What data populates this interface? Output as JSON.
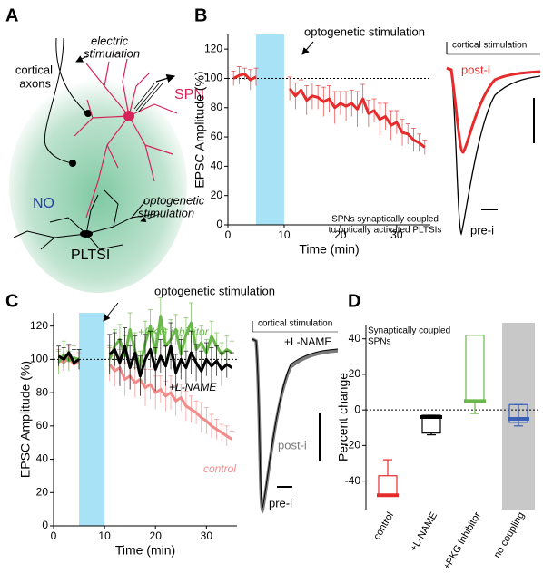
{
  "panel_labels": [
    "A",
    "B",
    "C",
    "D"
  ],
  "diagram": {
    "electric_stimulation": [
      "electric",
      "stimulation"
    ],
    "cortical_axons": [
      "cortical",
      "axons"
    ],
    "spn": "SPN",
    "no": "NO",
    "optogenetic_stimulation": [
      "optogenetic",
      "stimulation"
    ],
    "pltsi": "PLTSI"
  },
  "traces": [
    {
      "stimulus": "cortical stimulation",
      "post": "post-i",
      "pre": "pre-i"
    },
    {
      "stimulus": "cortical stimulation",
      "condition": "+L-NAME",
      "post": "post-i",
      "pre": "pre-i"
    }
  ],
  "chart_data": [
    {
      "type": "line",
      "xlabel": "Time (min)",
      "ylabel": "EPSC Amplitude (%)",
      "xlim": [
        0,
        36
      ],
      "xticks": [
        0,
        10,
        20,
        30
      ],
      "ylim": [
        0,
        130
      ],
      "yticks": [
        0,
        20,
        40,
        60,
        80,
        100,
        120
      ],
      "reference_line": 100,
      "shaded_span": [
        5,
        10
      ],
      "shaded_color": "#a8e2f6",
      "annotation": "optogenetic stimulation",
      "note": [
        "SPNs synaptically coupled",
        "to optically activated PLTSIs"
      ],
      "x": [
        1,
        2,
        3,
        4,
        5,
        6,
        7,
        8,
        9,
        10,
        11,
        12,
        13,
        14,
        15,
        16,
        17,
        18,
        19,
        20,
        21,
        22,
        23,
        24,
        25,
        26,
        27,
        28,
        29,
        30,
        31,
        32,
        33,
        34,
        35
      ],
      "series": [
        {
          "color": "#e52b2b",
          "values": [
            100,
            102,
            103,
            99,
            101,
            null,
            null,
            null,
            null,
            null,
            93,
            88,
            92,
            85,
            88,
            87,
            84,
            86,
            80,
            83,
            81,
            83,
            79,
            86,
            76,
            78,
            72,
            74,
            68,
            70,
            63,
            62,
            58,
            56,
            53
          ],
          "errors": [
            5,
            6,
            4,
            7,
            6,
            null,
            null,
            null,
            null,
            null,
            8,
            9,
            7,
            10,
            9,
            8,
            10,
            9,
            11,
            8,
            10,
            9,
            12,
            10,
            9,
            8,
            11,
            9,
            10,
            8,
            9,
            7,
            8,
            6,
            5
          ]
        }
      ]
    },
    {
      "type": "line",
      "xlabel": "Time (min)",
      "ylabel": "EPSC Amplitude (%)",
      "xlim": [
        0,
        36
      ],
      "xticks": [
        0,
        10,
        20,
        30
      ],
      "ylim": [
        0,
        128
      ],
      "yticks": [
        0,
        20,
        40,
        60,
        80,
        100,
        120
      ],
      "reference_line": 100,
      "shaded_span": [
        5,
        10
      ],
      "shaded_color": "#a8e2f6",
      "annotation": "optogenetic stimulation",
      "x": [
        1,
        2,
        3,
        4,
        5,
        6,
        7,
        8,
        9,
        10,
        11,
        12,
        13,
        14,
        15,
        16,
        17,
        18,
        19,
        20,
        21,
        22,
        23,
        24,
        25,
        26,
        27,
        28,
        29,
        30,
        31,
        32,
        33,
        34,
        35
      ],
      "series": [
        {
          "name": "control",
          "color": "#f28a8a",
          "values": [
            100,
            98,
            101,
            97,
            99,
            null,
            null,
            null,
            null,
            null,
            97,
            93,
            95,
            88,
            90,
            86,
            88,
            83,
            85,
            80,
            82,
            78,
            80,
            75,
            77,
            72,
            70,
            68,
            65,
            63,
            60,
            58,
            56,
            54,
            52
          ],
          "errors": [
            6,
            5,
            7,
            6,
            5,
            null,
            null,
            null,
            null,
            null,
            10,
            9,
            11,
            10,
            8,
            9,
            10,
            11,
            9,
            10,
            8,
            9,
            10,
            9,
            8,
            9,
            8,
            7,
            9,
            8,
            7,
            6,
            5,
            6,
            5
          ]
        },
        {
          "name": "+PKG inhibitor",
          "color": "#6ab84a",
          "values": [
            98,
            103,
            99,
            101,
            100,
            null,
            null,
            null,
            null,
            null,
            100,
            108,
            112,
            102,
            118,
            105,
            96,
            110,
            120,
            104,
            126,
            108,
            112,
            118,
            103,
            115,
            122,
            106,
            110,
            104,
            114,
            108,
            103,
            106,
            104
          ],
          "errors": [
            7,
            8,
            6,
            7,
            6,
            null,
            null,
            null,
            null,
            null,
            8,
            10,
            9,
            12,
            10,
            11,
            9,
            13,
            10,
            12,
            11,
            10,
            12,
            9,
            11,
            10,
            12,
            9,
            10,
            8,
            9,
            8,
            7,
            8,
            7
          ]
        },
        {
          "name": "+L-NAME",
          "color": "#000000",
          "values": [
            102,
            100,
            104,
            98,
            100,
            null,
            null,
            null,
            null,
            null,
            103,
            106,
            98,
            108,
            95,
            104,
            90,
            100,
            106,
            94,
            102,
            96,
            108,
            92,
            100,
            95,
            104,
            98,
            93,
            100,
            96,
            99,
            94,
            97,
            95
          ],
          "errors": [
            6,
            7,
            5,
            8,
            6,
            null,
            null,
            null,
            null,
            null,
            12,
            10,
            14,
            11,
            13,
            10,
            12,
            15,
            11,
            13,
            10,
            12,
            14,
            11,
            12,
            10,
            13,
            11,
            12,
            10,
            11,
            9,
            10,
            8,
            9
          ]
        }
      ]
    },
    {
      "type": "box",
      "ylabel": "Percent change",
      "ylim": [
        -56,
        48
      ],
      "yticks": [
        -40,
        -20,
        0,
        20,
        40
      ],
      "reference_line": 0,
      "note": [
        "Synaptically coupled",
        "SPNs"
      ],
      "categories": [
        "control",
        "+L-NAME",
        "+PKG inhibitor",
        "no coupling"
      ],
      "boxes": [
        {
          "color": "#e52b2b",
          "whisker_low": -48,
          "q1": -48,
          "median": -48,
          "q3": -37,
          "whisker_high": -28
        },
        {
          "color": "#000000",
          "whisker_low": -14,
          "q1": -13,
          "median": -4,
          "q3": -3,
          "whisker_high": -3
        },
        {
          "color": "#6ab84a",
          "whisker_low": -2,
          "q1": 5,
          "median": 5,
          "q3": 42,
          "whisker_high": 42
        },
        {
          "color": "#3a5fb5",
          "whisker_low": -9,
          "q1": -7,
          "median": -5,
          "q3": 3,
          "whisker_high": 3,
          "background": "#c8c8c8"
        }
      ]
    }
  ]
}
